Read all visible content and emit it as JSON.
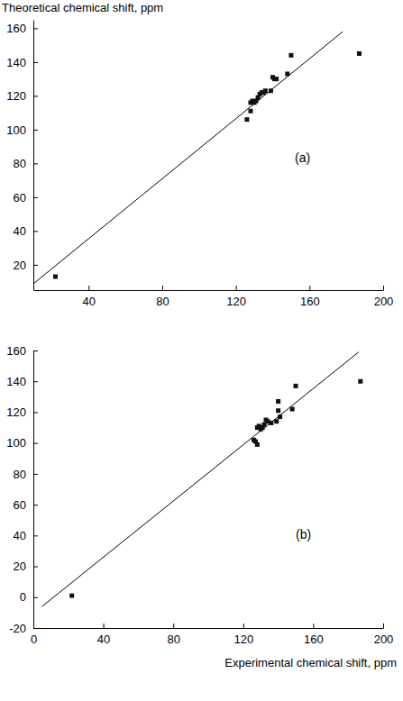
{
  "chart_data": [
    {
      "type": "scatter",
      "y_label": "Theoretical chemical shift, ppm",
      "annotations": [
        {
          "text": "(a)",
          "x": 152,
          "y": 81
        }
      ],
      "x": [
        22,
        126,
        128,
        128,
        129,
        130,
        131,
        132,
        133,
        134,
        135,
        136,
        139,
        140,
        141,
        142,
        148,
        150,
        187
      ],
      "values": [
        13,
        106,
        111,
        116,
        117,
        116,
        117,
        119,
        121,
        122,
        122,
        123,
        123,
        131,
        130,
        130,
        133,
        144,
        145
      ],
      "fit": {
        "x": [
          8,
          178
        ],
        "values": [
          7,
          158
        ]
      },
      "marker": "square",
      "color": "#111111",
      "xlim": [
        10,
        200
      ],
      "xticks": [
        40,
        80,
        120,
        160,
        200
      ],
      "ylim": [
        5,
        165
      ],
      "yticks": [
        20,
        40,
        60,
        80,
        100,
        120,
        140,
        160
      ]
    },
    {
      "type": "scatter",
      "x_label": "Experimental chemical shift, ppm",
      "annotations": [
        {
          "text": "(b)",
          "x": 150,
          "y": 38
        }
      ],
      "x": [
        22,
        126,
        127,
        128,
        128,
        129,
        130,
        131,
        132,
        133,
        134,
        136,
        139,
        140,
        140,
        141,
        148,
        150,
        187
      ],
      "values": [
        1,
        102,
        101,
        99,
        110,
        111,
        109,
        110,
        112,
        115,
        114,
        113,
        114,
        127,
        121,
        117,
        122,
        137,
        140
      ],
      "fit": {
        "x": [
          5,
          186
        ],
        "values": [
          -6,
          159
        ]
      },
      "marker": "square",
      "color": "#111111",
      "xlim": [
        0,
        200
      ],
      "xticks": [
        0,
        40,
        80,
        120,
        160,
        200
      ],
      "ylim": [
        -20,
        160
      ],
      "yticks": [
        -20,
        0,
        20,
        40,
        60,
        80,
        100,
        120,
        140,
        160
      ]
    }
  ]
}
